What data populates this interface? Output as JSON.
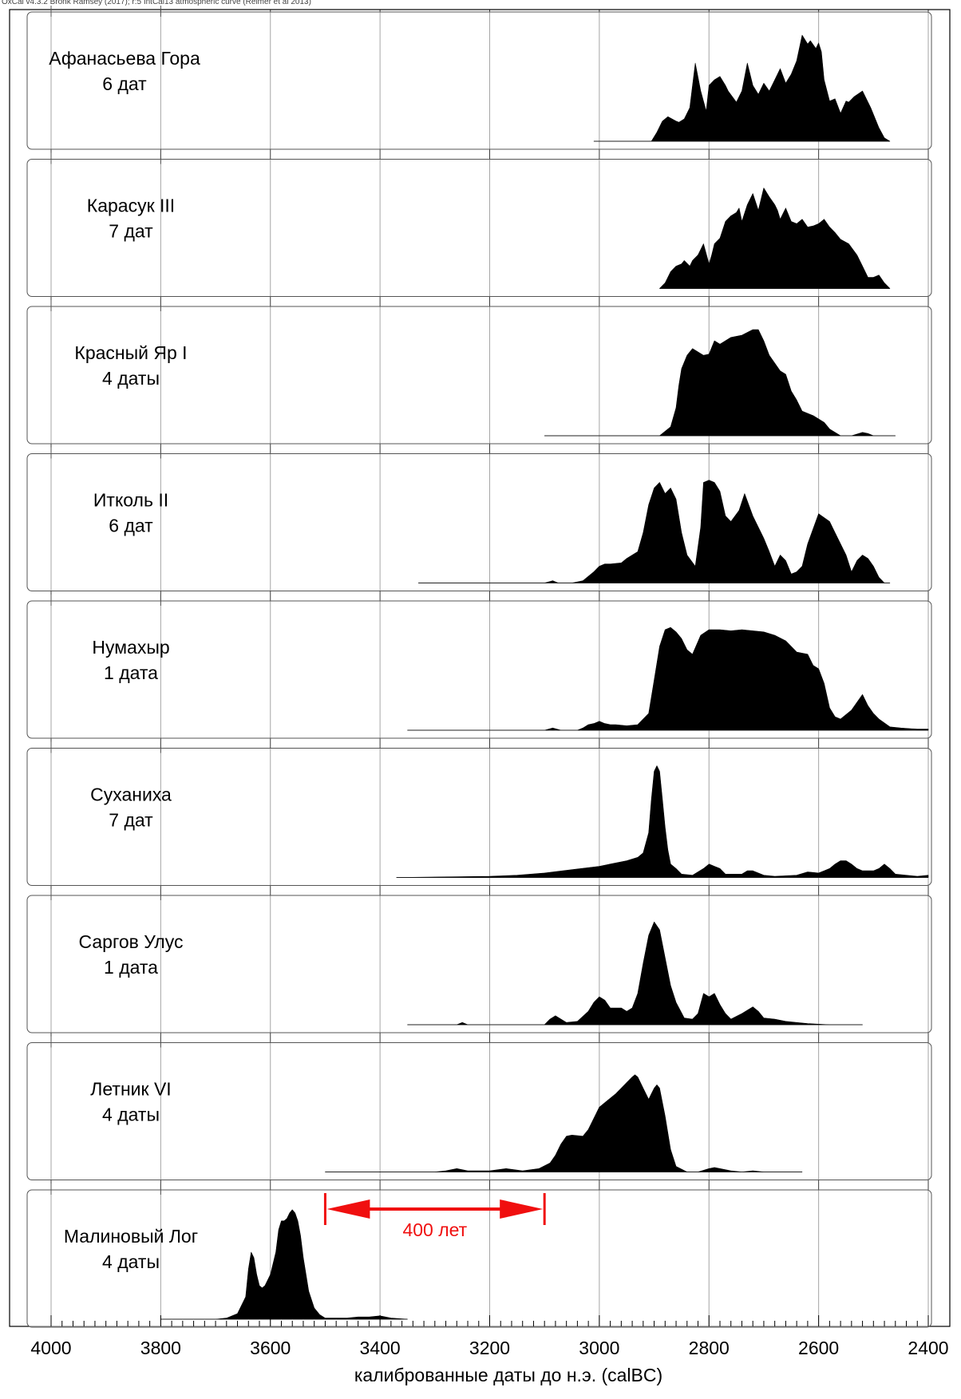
{
  "header_text": "OxCal v4.3.2 Bronk Ramsey (2017); r:5 IntCal13 atmospheric curve (Reimer et al 2013)",
  "chart_data": {
    "type": "area",
    "xlabel": "калиброванные даты до н.э. (calBC)",
    "xlim": [
      4000,
      2400
    ],
    "x_ticks": [
      4000,
      3800,
      3600,
      3400,
      3200,
      3000,
      2800,
      2600,
      2400
    ],
    "grid": true,
    "series": [
      {
        "name": "Афанасьева Гора",
        "count_label": "6 дат",
        "range": [
          3010,
          2470
        ],
        "x": [
          3010,
          2905,
          2895,
          2885,
          2875,
          2860,
          2855,
          2845,
          2835,
          2825,
          2815,
          2805,
          2800,
          2790,
          2780,
          2770,
          2765,
          2750,
          2740,
          2730,
          2720,
          2710,
          2700,
          2690,
          2680,
          2670,
          2660,
          2650,
          2640,
          2630,
          2620,
          2615,
          2605,
          2600,
          2595,
          2590,
          2580,
          2570,
          2560,
          2550,
          2545,
          2535,
          2520,
          2505,
          2490,
          2480,
          2470
        ],
        "y": [
          0,
          0,
          0.08,
          0.18,
          0.22,
          0.18,
          0.17,
          0.2,
          0.3,
          0.7,
          0.45,
          0.27,
          0.5,
          0.55,
          0.58,
          0.5,
          0.45,
          0.35,
          0.45,
          0.7,
          0.5,
          0.42,
          0.52,
          0.45,
          0.55,
          0.65,
          0.52,
          0.6,
          0.72,
          0.95,
          0.87,
          0.9,
          0.83,
          0.88,
          0.8,
          0.55,
          0.36,
          0.38,
          0.25,
          0.36,
          0.35,
          0.4,
          0.45,
          0.3,
          0.12,
          0.03,
          0
        ]
      },
      {
        "name": "Карасук III",
        "count_label": "7 дат",
        "range": [
          2890,
          2470
        ],
        "x": [
          2890,
          2880,
          2870,
          2860,
          2850,
          2845,
          2835,
          2830,
          2820,
          2810,
          2800,
          2795,
          2790,
          2780,
          2770,
          2760,
          2750,
          2745,
          2740,
          2730,
          2720,
          2710,
          2700,
          2690,
          2680,
          2675,
          2670,
          2660,
          2650,
          2640,
          2630,
          2620,
          2610,
          2600,
          2590,
          2580,
          2570,
          2560,
          2545,
          2530,
          2520,
          2510,
          2500,
          2490,
          2480,
          2470
        ],
        "y": [
          0,
          0.05,
          0.15,
          0.2,
          0.22,
          0.25,
          0.2,
          0.25,
          0.3,
          0.4,
          0.22,
          0.3,
          0.4,
          0.45,
          0.6,
          0.65,
          0.68,
          0.72,
          0.6,
          0.75,
          0.85,
          0.7,
          0.9,
          0.82,
          0.75,
          0.7,
          0.62,
          0.72,
          0.6,
          0.58,
          0.62,
          0.55,
          0.56,
          0.58,
          0.62,
          0.55,
          0.5,
          0.44,
          0.4,
          0.3,
          0.2,
          0.1,
          0.1,
          0.12,
          0.05,
          0
        ]
      },
      {
        "name": "Красный Яр I",
        "count_label": "4 даты",
        "range": [
          3100,
          2460
        ],
        "x": [
          3100,
          2890,
          2870,
          2860,
          2855,
          2850,
          2840,
          2830,
          2820,
          2810,
          2800,
          2790,
          2780,
          2760,
          2740,
          2720,
          2710,
          2700,
          2690,
          2670,
          2660,
          2650,
          2640,
          2630,
          2610,
          2590,
          2580,
          2570,
          2560,
          2540,
          2520,
          2510,
          2500,
          2460
        ],
        "y": [
          0,
          0,
          0.08,
          0.25,
          0.45,
          0.6,
          0.72,
          0.78,
          0.75,
          0.72,
          0.73,
          0.85,
          0.82,
          0.88,
          0.9,
          0.95,
          0.95,
          0.85,
          0.72,
          0.58,
          0.55,
          0.4,
          0.32,
          0.22,
          0.18,
          0.12,
          0.06,
          0.03,
          0,
          0,
          0.03,
          0.02,
          0,
          0
        ],
        "outline_extends_to": 2460
      },
      {
        "name": "Итколь II",
        "count_label": "6 дат",
        "range": [
          3330,
          2470
        ],
        "x": [
          3330,
          3100,
          3085,
          3075,
          3050,
          3030,
          3010,
          3000,
          2990,
          2980,
          2960,
          2950,
          2940,
          2930,
          2920,
          2910,
          2900,
          2890,
          2880,
          2870,
          2860,
          2850,
          2840,
          2825,
          2815,
          2810,
          2800,
          2790,
          2780,
          2770,
          2760,
          2745,
          2735,
          2720,
          2715,
          2700,
          2690,
          2680,
          2670,
          2660,
          2650,
          2640,
          2630,
          2620,
          2600,
          2580,
          2570,
          2560,
          2550,
          2540,
          2530,
          2520,
          2510,
          2500,
          2490,
          2480,
          2470
        ],
        "y": [
          0,
          0,
          0.02,
          0,
          0,
          0.02,
          0.1,
          0.15,
          0.17,
          0.17,
          0.18,
          0.22,
          0.25,
          0.28,
          0.45,
          0.7,
          0.85,
          0.9,
          0.8,
          0.85,
          0.75,
          0.45,
          0.25,
          0.15,
          0.5,
          0.9,
          0.92,
          0.9,
          0.82,
          0.6,
          0.55,
          0.65,
          0.8,
          0.6,
          0.55,
          0.4,
          0.28,
          0.15,
          0.25,
          0.2,
          0.08,
          0.1,
          0.15,
          0.35,
          0.62,
          0.55,
          0.45,
          0.35,
          0.25,
          0.1,
          0.2,
          0.25,
          0.22,
          0.15,
          0.05,
          0,
          0
        ]
      },
      {
        "name": "Нумахыр",
        "count_label": "1 дата",
        "range": [
          3350,
          2400
        ],
        "x": [
          3350,
          3100,
          3085,
          3070,
          3040,
          3030,
          3020,
          3010,
          3000,
          2990,
          2980,
          2970,
          2950,
          2930,
          2910,
          2900,
          2890,
          2880,
          2870,
          2860,
          2850,
          2840,
          2830,
          2815,
          2800,
          2780,
          2760,
          2740,
          2720,
          2700,
          2680,
          2660,
          2640,
          2620,
          2610,
          2600,
          2590,
          2580,
          2570,
          2560,
          2540,
          2520,
          2510,
          2500,
          2490,
          2470,
          2450,
          2420,
          2400
        ],
        "y": [
          0,
          0,
          0.02,
          0,
          0,
          0.02,
          0.05,
          0.06,
          0.08,
          0.06,
          0.05,
          0.05,
          0.04,
          0.05,
          0.15,
          0.45,
          0.75,
          0.9,
          0.92,
          0.88,
          0.82,
          0.72,
          0.68,
          0.85,
          0.9,
          0.9,
          0.89,
          0.9,
          0.89,
          0.88,
          0.85,
          0.8,
          0.7,
          0.68,
          0.58,
          0.55,
          0.42,
          0.2,
          0.12,
          0.1,
          0.18,
          0.32,
          0.22,
          0.15,
          0.1,
          0.03,
          0.02,
          0.01,
          0.01
        ]
      },
      {
        "name": "Суханиха",
        "count_label": "7 дат",
        "range": [
          3370,
          2400
        ],
        "x": [
          3370,
          3200,
          3150,
          3100,
          3050,
          3000,
          2950,
          2930,
          2920,
          2910,
          2905,
          2900,
          2895,
          2890,
          2885,
          2880,
          2875,
          2870,
          2860,
          2850,
          2830,
          2810,
          2800,
          2790,
          2780,
          2770,
          2760,
          2740,
          2730,
          2720,
          2700,
          2680,
          2640,
          2620,
          2600,
          2590,
          2580,
          2570,
          2560,
          2550,
          2540,
          2530,
          2520,
          2500,
          2490,
          2480,
          2470,
          2460,
          2440,
          2420,
          2400
        ],
        "y": [
          0,
          0.01,
          0.02,
          0.04,
          0.07,
          0.1,
          0.15,
          0.18,
          0.22,
          0.4,
          0.7,
          0.95,
          1,
          0.95,
          0.7,
          0.45,
          0.25,
          0.12,
          0.08,
          0.03,
          0.02,
          0.08,
          0.12,
          0.1,
          0.08,
          0.03,
          0.03,
          0.03,
          0.06,
          0.06,
          0.02,
          0.01,
          0.02,
          0.05,
          0.04,
          0.06,
          0.08,
          0.12,
          0.15,
          0.15,
          0.12,
          0.08,
          0.06,
          0.06,
          0.08,
          0.12,
          0.08,
          0.03,
          0.02,
          0.01,
          0.02
        ]
      },
      {
        "name": "Саргов Улус",
        "count_label": "1 дата",
        "range": [
          3350,
          2520
        ],
        "x": [
          3350,
          3260,
          3250,
          3240,
          3100,
          3090,
          3080,
          3060,
          3040,
          3020,
          3010,
          3000,
          2990,
          2980,
          2960,
          2950,
          2940,
          2930,
          2920,
          2910,
          2900,
          2890,
          2880,
          2870,
          2860,
          2845,
          2830,
          2820,
          2810,
          2800,
          2790,
          2780,
          2770,
          2760,
          2740,
          2720,
          2710,
          2700,
          2680,
          2660,
          2640,
          2620,
          2580,
          2520
        ],
        "y": [
          0,
          0,
          0.02,
          0,
          0,
          0.05,
          0.08,
          0.02,
          0.03,
          0.12,
          0.2,
          0.25,
          0.22,
          0.15,
          0.15,
          0.12,
          0.15,
          0.28,
          0.55,
          0.8,
          0.92,
          0.85,
          0.6,
          0.35,
          0.2,
          0.06,
          0.05,
          0.1,
          0.28,
          0.25,
          0.28,
          0.18,
          0.1,
          0.05,
          0.1,
          0.16,
          0.12,
          0.06,
          0.05,
          0.03,
          0.02,
          0.01,
          0,
          0
        ]
      },
      {
        "name": "Летник VI",
        "count_label": "4 даты",
        "range": [
          3500,
          2630
        ],
        "x": [
          3500,
          3300,
          3280,
          3260,
          3240,
          3200,
          3170,
          3140,
          3110,
          3090,
          3080,
          3070,
          3060,
          3050,
          3030,
          3020,
          3010,
          3000,
          2990,
          2980,
          2970,
          2960,
          2950,
          2940,
          2935,
          2930,
          2920,
          2910,
          2905,
          2900,
          2895,
          2890,
          2880,
          2870,
          2860,
          2840,
          2820,
          2800,
          2790,
          2780,
          2760,
          2740,
          2720,
          2700,
          2630
        ],
        "y": [
          0,
          0,
          0.01,
          0.03,
          0.01,
          0.01,
          0.03,
          0.01,
          0.03,
          0.08,
          0.15,
          0.25,
          0.32,
          0.33,
          0.32,
          0.38,
          0.48,
          0.58,
          0.62,
          0.66,
          0.7,
          0.75,
          0.8,
          0.85,
          0.87,
          0.85,
          0.75,
          0.65,
          0.7,
          0.75,
          0.78,
          0.75,
          0.5,
          0.2,
          0.05,
          0,
          0,
          0.03,
          0.04,
          0.03,
          0.01,
          0,
          0.01,
          0,
          0
        ]
      },
      {
        "name": "Малиновый Лог",
        "count_label": "4 даты",
        "range": [
          3800,
          3350
        ],
        "x": [
          3800,
          3700,
          3680,
          3660,
          3645,
          3640,
          3635,
          3630,
          3625,
          3620,
          3615,
          3610,
          3600,
          3590,
          3585,
          3580,
          3575,
          3570,
          3565,
          3560,
          3555,
          3550,
          3545,
          3540,
          3530,
          3520,
          3510,
          3500,
          3480,
          3460,
          3440,
          3420,
          3400,
          3390,
          3380,
          3350
        ],
        "y": [
          0,
          0,
          0.01,
          0.05,
          0.2,
          0.45,
          0.6,
          0.55,
          0.4,
          0.3,
          0.28,
          0.3,
          0.4,
          0.6,
          0.8,
          0.88,
          0.88,
          0.9,
          0.95,
          0.98,
          0.95,
          0.88,
          0.75,
          0.55,
          0.25,
          0.1,
          0.04,
          0.01,
          0.01,
          0.01,
          0.02,
          0.02,
          0.03,
          0.02,
          0.01,
          0
        ]
      }
    ],
    "annotations": [
      {
        "type": "double-arrow",
        "from": 3500,
        "to": 3100,
        "label": "400 лет",
        "panel": "Малиновый Лог",
        "color": "#f00f0f"
      }
    ]
  }
}
